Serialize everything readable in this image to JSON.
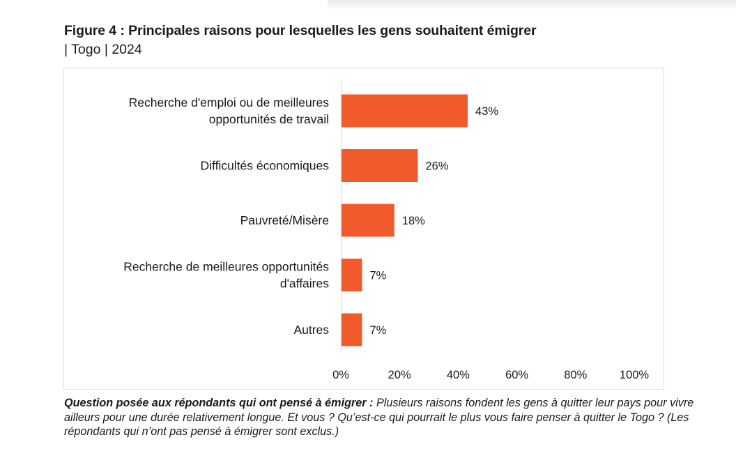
{
  "figure": {
    "title": "Figure 4 : Principales raisons pour lesquelles les gens souhaitent émigrer",
    "subtitle": "| Togo | 2024"
  },
  "chart_data": {
    "type": "bar",
    "orientation": "horizontal",
    "categories": [
      [
        "Recherche d'emploi ou de meilleures",
        "opportunités de travail"
      ],
      [
        "Difficultés économiques"
      ],
      [
        "Pauvreté/Misère"
      ],
      [
        "Recherche de meilleures opportunités",
        "d'affaires"
      ],
      [
        "Autres"
      ]
    ],
    "values": [
      43,
      26,
      18,
      7,
      7
    ],
    "value_labels": [
      "43%",
      "26%",
      "18%",
      "7%",
      "7%"
    ],
    "xlim": [
      0,
      100
    ],
    "xticks": [
      "0%",
      "20%",
      "40%",
      "60%",
      "80%",
      "100%"
    ],
    "bar_color": "#F15A2B",
    "grid": false,
    "legend": "none"
  },
  "note": {
    "lead": "Question posée aux répondants qui ont pensé à émigrer :",
    "text": " Plusieurs raisons fondent les gens à quitter leur pays pour vivre ailleurs pour une durée relativement longue. Et vous ? Qu’est-ce qui pourrait le plus vous faire penser à quitter le Togo ? (Les répondants qui n’ont pas pensé à émigrer sont exclus.)"
  }
}
